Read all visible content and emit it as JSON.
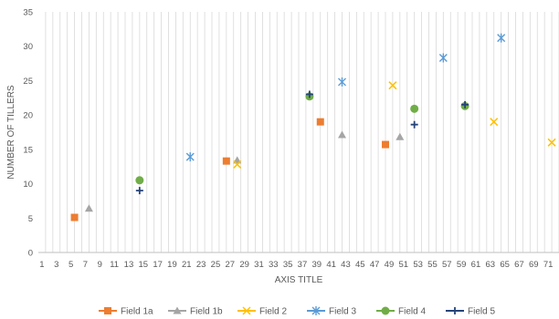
{
  "chart_data": {
    "type": "scatter",
    "title": "",
    "xlabel": "AXIS TITLE",
    "ylabel": "NUMBER OF TILLERS",
    "xlim": [
      0,
      72
    ],
    "ylim": [
      0,
      35
    ],
    "x_ticks": [
      1,
      3,
      5,
      7,
      9,
      11,
      13,
      15,
      17,
      19,
      21,
      23,
      25,
      27,
      29,
      31,
      33,
      35,
      37,
      39,
      41,
      43,
      45,
      47,
      49,
      51,
      53,
      55,
      57,
      59,
      61,
      63,
      65,
      67,
      69,
      71
    ],
    "y_ticks": [
      0,
      5,
      10,
      15,
      20,
      25,
      30,
      35
    ],
    "vertical_gridlines": true,
    "horizontal_gridlines": false,
    "legend_position": "bottom",
    "series": [
      {
        "name": "Field 1a",
        "color": "#ED7D31",
        "marker": "square",
        "points": [
          [
            5,
            5.1
          ],
          [
            26,
            13.3
          ],
          [
            39,
            19.0
          ],
          [
            48,
            15.7
          ]
        ]
      },
      {
        "name": "Field 1b",
        "color": "#A5A5A5",
        "marker": "triangle",
        "points": [
          [
            7,
            6.4
          ],
          [
            27.5,
            13.4
          ],
          [
            42,
            17.1
          ],
          [
            50,
            16.8
          ]
        ]
      },
      {
        "name": "Field 2",
        "color": "#FFC000",
        "marker": "x",
        "points": [
          [
            27.5,
            12.8
          ],
          [
            49,
            24.3
          ],
          [
            63,
            19.0
          ],
          [
            71,
            16.0
          ]
        ]
      },
      {
        "name": "Field 3",
        "color": "#5B9BD5",
        "marker": "star",
        "points": [
          [
            21,
            13.9
          ],
          [
            42,
            24.8
          ],
          [
            56,
            28.3
          ],
          [
            64,
            31.2
          ]
        ]
      },
      {
        "name": "Field 4",
        "color": "#70AD47",
        "marker": "circle",
        "points": [
          [
            14,
            10.5
          ],
          [
            37.5,
            22.7
          ],
          [
            52,
            20.9
          ],
          [
            59,
            21.3
          ]
        ]
      },
      {
        "name": "Field 5",
        "color": "#264478",
        "marker": "plus",
        "points": [
          [
            14,
            9.0
          ],
          [
            37.5,
            23.0
          ],
          [
            52,
            18.6
          ],
          [
            59,
            21.5
          ]
        ]
      }
    ]
  }
}
